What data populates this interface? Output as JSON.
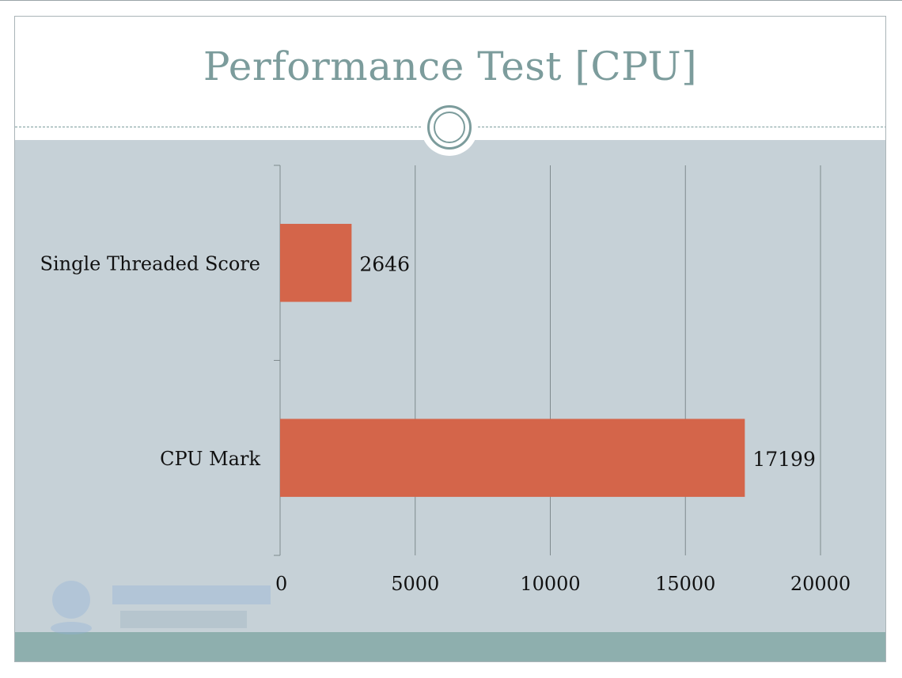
{
  "colors": {
    "title": "#7c9c9c",
    "panel": "#c6d1d7",
    "footer": "#8eafae",
    "bar": "#d4654a",
    "grid": "#7f8a8e"
  },
  "chart_data": {
    "type": "bar",
    "orientation": "horizontal",
    "title": "Performance Test [CPU]",
    "categories": [
      "Single Threaded Score",
      "CPU Mark"
    ],
    "values": [
      2646,
      17199
    ],
    "data_labels": [
      "2646",
      "17199"
    ],
    "xlim": [
      0,
      20000
    ],
    "x_ticks": [
      0,
      5000,
      10000,
      15000,
      20000
    ],
    "x_tick_labels": [
      "0",
      "5000",
      "10000",
      "15000",
      "20000"
    ],
    "grid": true,
    "legend": "none"
  }
}
